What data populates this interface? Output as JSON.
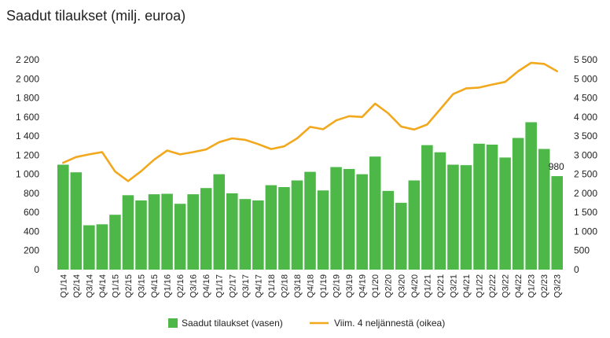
{
  "chart_data": {
    "type": "bar+line",
    "title": "Saadut tilaukset (milj. euroa)",
    "categories": [
      "Q1/14",
      "Q2/14",
      "Q3/14",
      "Q4/14",
      "Q1/15",
      "Q2/15",
      "Q3/15",
      "Q4/15",
      "Q1/16",
      "Q2/16",
      "Q3/16",
      "Q4/16",
      "Q1/17",
      "Q2/17",
      "Q3/17",
      "Q4/17",
      "Q1/18",
      "Q2/18",
      "Q3/18",
      "Q4/18",
      "Q1/19",
      "Q2/19",
      "Q3/19",
      "Q4/19",
      "Q1/20",
      "Q2/20",
      "Q3/20",
      "Q4/20",
      "Q1/21",
      "Q2/21",
      "Q3/21",
      "Q4/21",
      "Q1/22",
      "Q2/22",
      "Q3/22",
      "Q4/22",
      "Q1/23",
      "Q2/23",
      "Q3/23"
    ],
    "series": [
      {
        "name": "Saadut tilaukset (vasen)",
        "type": "bar",
        "axis": "left",
        "color": "#4db848",
        "values": [
          1100,
          1020,
          465,
          475,
          575,
          780,
          725,
          790,
          795,
          690,
          790,
          855,
          1000,
          800,
          740,
          725,
          885,
          865,
          935,
          1025,
          830,
          1075,
          1055,
          1000,
          1185,
          825,
          700,
          935,
          1305,
          1230,
          1100,
          1095,
          1320,
          1310,
          1175,
          1380,
          1545,
          1265,
          980
        ]
      },
      {
        "name": "Viim. 4 neljännestä (oikea)",
        "type": "line",
        "axis": "right",
        "color": "#f2a81d",
        "values": [
          2800,
          2950,
          3020,
          3080,
          2570,
          2320,
          2580,
          2880,
          3120,
          3020,
          3080,
          3150,
          3340,
          3440,
          3400,
          3290,
          3160,
          3230,
          3440,
          3740,
          3680,
          3910,
          4020,
          4000,
          4350,
          4100,
          3750,
          3670,
          3800,
          4200,
          4600,
          4750,
          4770,
          4850,
          4920,
          5200,
          5420,
          5390,
          5200
        ]
      }
    ],
    "y_left": {
      "min": 0,
      "max": 2200,
      "step": 200,
      "ticks": [
        "0",
        "200",
        "400",
        "600",
        "800",
        "1 000",
        "1 200",
        "1 400",
        "1 600",
        "1 800",
        "2 000",
        "2 200"
      ]
    },
    "y_right": {
      "min": 0,
      "max": 5500,
      "step": 500,
      "ticks": [
        "0",
        "500",
        "1 000",
        "1 500",
        "2 000",
        "2 500",
        "3 000",
        "3 500",
        "4 000",
        "4 500",
        "5 000",
        "5 500"
      ]
    },
    "grid": false,
    "legend_position": "bottom",
    "annotations": [
      {
        "category": "Q3/23",
        "text": "980"
      }
    ]
  }
}
